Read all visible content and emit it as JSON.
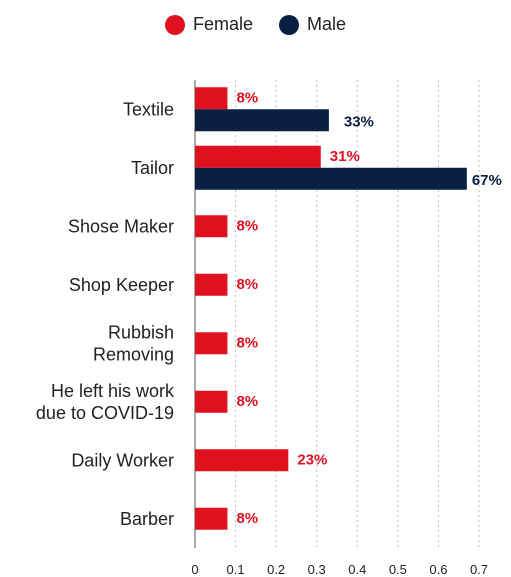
{
  "legend": {
    "female_label": "Female",
    "male_label": "Male"
  },
  "colors": {
    "female": "#e0111f",
    "male": "#0a1f44",
    "grid": "#bdbdbd",
    "axis": "#555555"
  },
  "chart_data": {
    "type": "bar",
    "orientation": "horizontal",
    "categories": [
      [
        "Textile"
      ],
      [
        "Tailor"
      ],
      [
        "Shose Maker"
      ],
      [
        "Shop Keeper"
      ],
      [
        "Rubbish",
        "Removing"
      ],
      [
        "He left his work",
        "due to COVID-19"
      ],
      [
        "Daily Worker"
      ],
      [
        "Barber"
      ]
    ],
    "series": [
      {
        "name": "Female",
        "values": [
          0.08,
          0.31,
          0.08,
          0.08,
          0.08,
          0.08,
          0.23,
          0.08
        ],
        "labels": [
          "8%",
          "31%",
          "8%",
          "8%",
          "8%",
          "8%",
          "23%",
          "8%"
        ]
      },
      {
        "name": "Male",
        "values": [
          0.33,
          0.67,
          null,
          null,
          null,
          null,
          null,
          null
        ],
        "labels": [
          "33%",
          "67%",
          null,
          null,
          null,
          null,
          null,
          null
        ]
      }
    ],
    "xlim": [
      0,
      0.7
    ],
    "xticks": [
      "0",
      "0.1",
      "0.2",
      "0.3",
      "0.4",
      "0.5",
      "0.6",
      "0.7"
    ],
    "grid": "vertical dotted",
    "legend_position": "top-center"
  }
}
